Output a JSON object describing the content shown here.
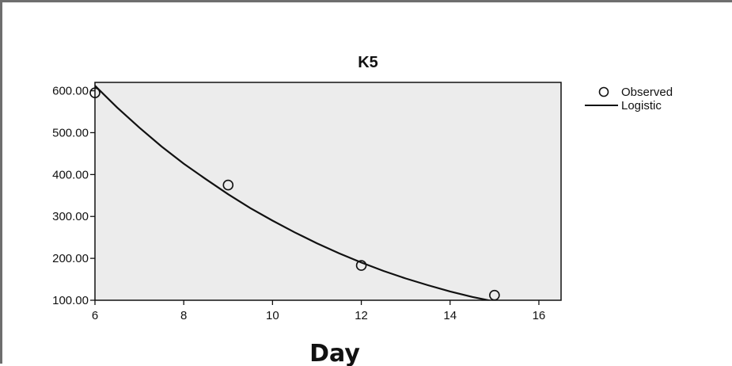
{
  "chart_data": {
    "type": "scatter",
    "title": "K5",
    "xlabel": "Day",
    "ylabel": "",
    "xlim": [
      6,
      16.5
    ],
    "ylim": [
      100,
      620
    ],
    "xticks": [
      6,
      8,
      10,
      12,
      14,
      16
    ],
    "xtick_labels": [
      "6",
      "8",
      "10",
      "12",
      "14",
      "16"
    ],
    "yticks": [
      100,
      200,
      300,
      400,
      500,
      600
    ],
    "ytick_labels": [
      "100.00",
      "200.00",
      "300.00",
      "400.00",
      "500.00",
      "600.00"
    ],
    "grid": false,
    "legend_position": "right",
    "series": [
      {
        "name": "Observed",
        "kind": "points",
        "x": [
          6,
          9,
          12,
          15
        ],
        "y": [
          595,
          375,
          183,
          112
        ]
      },
      {
        "name": "Logistic",
        "kind": "line",
        "x": [
          6,
          6.5,
          7,
          7.5,
          8,
          8.5,
          9,
          9.5,
          10,
          10.5,
          11,
          11.5,
          12,
          12.5,
          13,
          13.5,
          14,
          14.5,
          15,
          15.5
        ],
        "y": [
          612,
          560,
          512,
          467,
          426,
          389,
          353,
          320,
          290,
          262,
          236,
          212,
          190,
          170,
          152,
          136,
          121,
          108,
          97,
          87
        ]
      }
    ],
    "colors": {
      "plot_background": "#ececec",
      "line": "#111111",
      "marker_stroke": "#111111"
    }
  }
}
